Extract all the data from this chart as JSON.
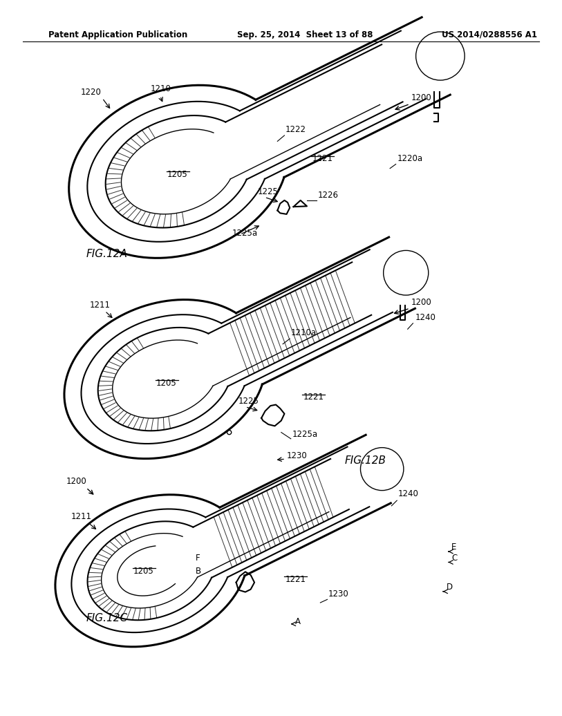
{
  "background_color": "#ffffff",
  "header_left": "Patent Application Publication",
  "header_center": "Sep. 25, 2014  Sheet 13 of 88",
  "header_right": "US 2014/0288556 A1",
  "line_color": "#000000",
  "text_color": "#000000"
}
